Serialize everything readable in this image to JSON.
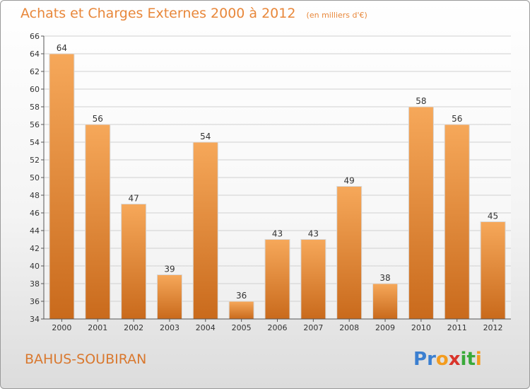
{
  "title": "Achats et Charges Externes 2000 à 2012",
  "subtitle": "(en milliers d'€)",
  "commune": "BAHUS-SOUBIRAN",
  "brand": {
    "letters": [
      "P",
      "r",
      "o",
      "x",
      "i",
      "t",
      "i"
    ],
    "colors": [
      "#3b7fd0",
      "#3b7fd0",
      "#f39c1f",
      "#d9342b",
      "#3aaa3a",
      "#3aaa3a",
      "#f39c1f"
    ]
  },
  "colors": {
    "bar": "#e8883c",
    "bar_light": "#f6a85a",
    "bar_dark": "#c96a1c",
    "text": "#333333",
    "grid": "#d0d0d0"
  },
  "chart_data": {
    "type": "bar",
    "categories": [
      "2000",
      "2001",
      "2002",
      "2003",
      "2004",
      "2005",
      "2006",
      "2007",
      "2008",
      "2009",
      "2010",
      "2011",
      "2012"
    ],
    "values": [
      64,
      56,
      47,
      39,
      54,
      36,
      43,
      43,
      49,
      38,
      58,
      56,
      45
    ],
    "ylim": [
      34,
      66
    ],
    "yticks": [
      34,
      36,
      38,
      40,
      42,
      44,
      46,
      48,
      50,
      52,
      54,
      56,
      58,
      60,
      62,
      64,
      66
    ],
    "grid": true,
    "data_labels": true
  }
}
